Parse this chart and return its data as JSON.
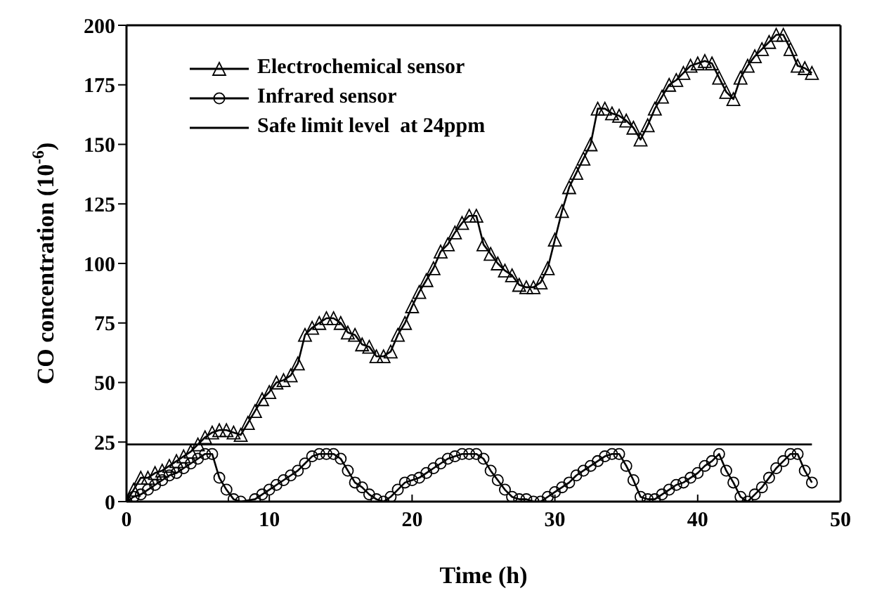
{
  "chart_data": {
    "type": "line",
    "xlabel": "Time (h)",
    "ylabel": "CO concentration (10$^{-6}$)",
    "xlim": [
      0,
      50
    ],
    "xticks": [
      0,
      10,
      20,
      30,
      40,
      50
    ],
    "ylim": [
      0,
      200
    ],
    "yticks": [
      0,
      25,
      50,
      75,
      100,
      125,
      150,
      175,
      200
    ],
    "grid": false,
    "legend": "top left",
    "series": [
      {
        "name": "Electrochemical sensor",
        "color": "#000000",
        "marker": "triangle",
        "x": [
          0,
          0.5,
          1,
          1.5,
          2,
          2.5,
          3,
          3.5,
          4,
          4.5,
          5,
          5.5,
          6,
          6.5,
          7,
          7.5,
          8,
          8.5,
          9,
          9.5,
          10,
          10.5,
          11,
          11.5,
          12,
          12.5,
          13,
          13.5,
          14,
          14.5,
          15,
          15.5,
          16,
          16.5,
          17,
          17.5,
          18,
          18.5,
          19,
          19.5,
          20,
          20.5,
          21,
          21.5,
          22,
          22.5,
          23,
          23.5,
          24,
          24.5,
          25,
          25.5,
          26,
          26.5,
          27,
          27.5,
          28,
          28.5,
          29,
          29.5,
          30,
          30.5,
          31,
          31.5,
          32,
          32.5,
          33,
          33.5,
          34,
          34.5,
          35,
          35.5,
          36,
          36.5,
          37,
          37.5,
          38,
          38.5,
          39,
          39.5,
          40,
          40.5,
          41,
          41.5,
          42,
          42.5,
          43,
          43.5,
          44,
          44.5,
          45,
          45.5,
          46,
          46.5,
          47,
          47.5,
          48
        ],
        "values": [
          0,
          5,
          10,
          10,
          12,
          13,
          15,
          17,
          19,
          21,
          24,
          27,
          29,
          30,
          30,
          29,
          28,
          33,
          38,
          43,
          46,
          50,
          51,
          53,
          58,
          70,
          73,
          75,
          77,
          77,
          75,
          71,
          70,
          66,
          65,
          61,
          61,
          63,
          70,
          75,
          82,
          88,
          93,
          98,
          105,
          108,
          113,
          117,
          120,
          120,
          108,
          104,
          100,
          97,
          95,
          91,
          90,
          90,
          92,
          98,
          110,
          122,
          132,
          138,
          144,
          150,
          165,
          165,
          163,
          162,
          160,
          157,
          152,
          158,
          165,
          170,
          175,
          177,
          180,
          183,
          184,
          185,
          184,
          178,
          172,
          169,
          178,
          183,
          187,
          190,
          193,
          196,
          196,
          190,
          183,
          182,
          180
        ]
      },
      {
        "name": "Infrared sensor",
        "color": "#000000",
        "marker": "circle",
        "x": [
          0,
          0.5,
          1,
          1.5,
          2,
          2.5,
          3,
          3.5,
          4,
          4.5,
          5,
          5.5,
          6,
          6.5,
          7,
          7.5,
          8,
          9,
          9.5,
          10,
          10.5,
          11,
          11.5,
          12,
          12.5,
          13,
          13.5,
          14,
          14.5,
          15,
          15.5,
          16,
          16.5,
          17,
          17.5,
          18,
          18.5,
          19,
          19.5,
          20,
          20.5,
          21,
          21.5,
          22,
          22.5,
          23,
          23.5,
          24,
          24.5,
          25,
          25.5,
          26,
          26.5,
          27,
          27.5,
          28,
          28.5,
          29,
          29.5,
          30,
          30.5,
          31,
          31.5,
          32,
          32.5,
          33,
          33.5,
          34,
          34.5,
          35,
          35.5,
          36,
          36.5,
          37,
          37.5,
          38,
          38.5,
          39,
          39.5,
          40,
          40.5,
          41,
          41.5,
          42,
          42.5,
          43,
          43.5,
          44,
          44.5,
          45,
          45.5,
          46,
          46.5,
          47,
          47.5,
          48
        ],
        "values": [
          0,
          2,
          3,
          5,
          7,
          9,
          11,
          12,
          14,
          16,
          18,
          20,
          20,
          10,
          5,
          1,
          0,
          1,
          3,
          5,
          7,
          9,
          11,
          13,
          16,
          19,
          20,
          20,
          20,
          18,
          13,
          8,
          6,
          3,
          1,
          0,
          2,
          5,
          8,
          9,
          10,
          12,
          14,
          16,
          18,
          19,
          20,
          20,
          20,
          18,
          13,
          9,
          5,
          2,
          1,
          1,
          0,
          0,
          2,
          4,
          6,
          8,
          11,
          13,
          15,
          17,
          19,
          20,
          20,
          15,
          9,
          2,
          1,
          1,
          3,
          5,
          7,
          8,
          10,
          12,
          15,
          17,
          20,
          13,
          8,
          2,
          0,
          3,
          6,
          10,
          14,
          17,
          20,
          20,
          13,
          8
        ]
      },
      {
        "name": "Safe limit level  at 24ppm",
        "color": "#000000",
        "marker": "none",
        "x": [
          0,
          48
        ],
        "values": [
          24,
          24
        ]
      }
    ]
  }
}
